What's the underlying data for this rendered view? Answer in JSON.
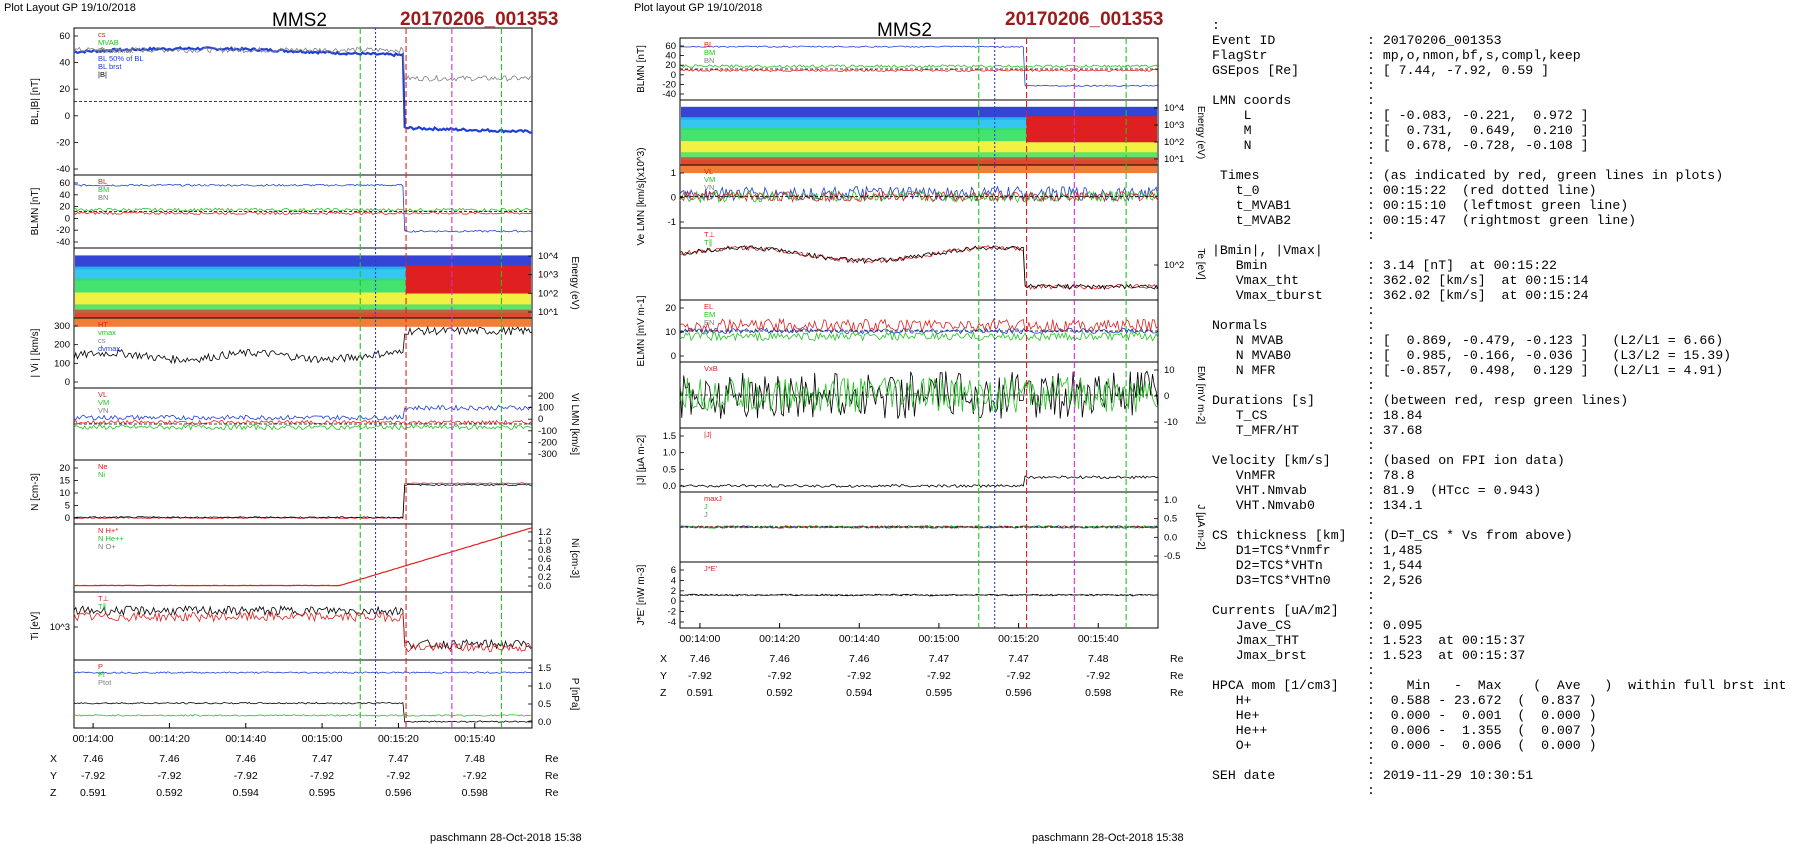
{
  "header": {
    "left_label": "Plot Layout GP 19/10/2018",
    "mid_label": "Plot layout GP 19/10/2018",
    "spacecraft": "MMS2",
    "event": "20170206_001353"
  },
  "footer": {
    "left": "paschmann 28-Oct-2018 15:38",
    "mid": "paschmann 28-Oct-2018 15:38"
  },
  "colors": {
    "blue": "#1f3fd6",
    "red": "#e02020",
    "green": "#22c322",
    "black": "#000000",
    "gray": "#808080",
    "event_red": "#9b1b1b",
    "magenta": "#d62ad6",
    "cyan": "#21b8d8"
  },
  "chart_data": [
    {
      "id": "left_stack",
      "type": "line",
      "time_ticks": [
        "00:14:00",
        "00:14:20",
        "00:14:40",
        "00:15:00",
        "00:15:20",
        "00:15:40"
      ],
      "ephemeris": {
        "rows": [
          {
            "label": "X",
            "values": [
              "7.46",
              "7.46",
              "7.46",
              "7.47",
              "7.47",
              "7.48"
            ],
            "unit": "Re"
          },
          {
            "label": "Y",
            "values": [
              "-7.92",
              "-7.92",
              "-7.92",
              "-7.92",
              "-7.92",
              "-7.92"
            ],
            "unit": "Re"
          },
          {
            "label": "Z",
            "values": [
              "0.591",
              "0.592",
              "0.594",
              "0.595",
              "0.596",
              "0.598"
            ],
            "unit": "Re"
          }
        ]
      },
      "panels": [
        {
          "ylabel": "B_L,|B| [nT]",
          "ylabel_text": "BL,|B| [nT]",
          "ticks": [
            "60",
            "40",
            "20",
            "0",
            "-20",
            "-40"
          ],
          "legend": [
            "cs",
            "MVAB",
            "BLminmax",
            "BL 50% of BL",
            "BL brst",
            "|B|"
          ]
        },
        {
          "ylabel": "B_LMN [nT]",
          "ylabel_text": "BLMN [nT]",
          "ticks": [
            "60",
            "40",
            "20",
            "0",
            "-20",
            "-40"
          ],
          "legend": [
            "BL",
            "BM",
            "BN"
          ]
        },
        {
          "ylabel": "Energy (eV)",
          "ylabel_text": "Energy (eV)",
          "ticks": [
            "10^4",
            "10^3",
            "10^2",
            "10^1"
          ],
          "legend": []
        },
        {
          "ylabel": "| Vi | [km/s]",
          "ylabel_text": "| Vi | [km/s]",
          "ticks": [
            "300",
            "200",
            "100",
            "0"
          ],
          "legend": [
            "HT",
            "vmax",
            "cs",
            "dvmax"
          ]
        },
        {
          "ylabel": "Vi LMN [km/s]",
          "ylabel_text": "Vi LMN [km/s]",
          "ticks": [
            "200",
            "100",
            "0",
            "-100",
            "-200",
            "-300"
          ],
          "legend": [
            "VL",
            "VM",
            "VN"
          ]
        },
        {
          "ylabel": "N [cm-3]",
          "ylabel_text": "N [cm-3]",
          "ticks": [
            "20",
            "15",
            "10",
            "5",
            "0"
          ],
          "legend": [
            "Ne",
            "Ni"
          ]
        },
        {
          "ylabel": "Ni [cm-3]",
          "ylabel_text": "Ni [cm-3]",
          "ticks": [
            "1.2",
            "1.0",
            "0.8",
            "0.6",
            "0.4",
            "0.2",
            "0.0"
          ],
          "legend": [
            "N H+*",
            "N He++",
            "N O+"
          ]
        },
        {
          "ylabel": "Ti [eV]",
          "ylabel_text": "Ti [eV]",
          "ticks": [
            "10^3"
          ],
          "legend": [
            "T⊥",
            "T∥"
          ]
        },
        {
          "ylabel": "P [nPa]",
          "ylabel_text": "P [nPa]",
          "ticks": [
            "1.5",
            "1.0",
            "0.5",
            "0.0"
          ],
          "legend": [
            "P",
            "Pi",
            "Ptot"
          ]
        }
      ],
      "vlines": {
        "green": [
          "00:15:10",
          "00:15:47"
        ],
        "red": [
          "00:15:22"
        ],
        "blue": [
          "00:15:14"
        ],
        "magenta": [
          "00:15:34"
        ]
      }
    },
    {
      "id": "mid_stack",
      "type": "line",
      "time_ticks": [
        "00:14:00",
        "00:14:20",
        "00:14:40",
        "00:15:00",
        "00:15:20",
        "00:15:40"
      ],
      "ephemeris": {
        "rows": [
          {
            "label": "X",
            "values": [
              "7.46",
              "7.46",
              "7.46",
              "7.47",
              "7.47",
              "7.48"
            ],
            "unit": "Re"
          },
          {
            "label": "Y",
            "values": [
              "-7.92",
              "-7.92",
              "-7.92",
              "-7.92",
              "-7.92",
              "-7.92"
            ],
            "unit": "Re"
          },
          {
            "label": "Z",
            "values": [
              "0.591",
              "0.592",
              "0.594",
              "0.595",
              "0.596",
              "0.598"
            ],
            "unit": "Re"
          }
        ]
      },
      "panels": [
        {
          "ylabel": "B LMN [nT]",
          "ylabel_text": "BLMN [nT]",
          "ticks": [
            "60",
            "40",
            "20",
            "0",
            "-20",
            "-40"
          ],
          "legend": [
            "BL",
            "BM",
            "BN"
          ]
        },
        {
          "ylabel": "Energy (eV)",
          "ylabel_text": "Energy (eV)",
          "ticks": [
            "10^4",
            "10^3",
            "10^2",
            "10^1"
          ],
          "legend": []
        },
        {
          "ylabel": "Ve LMN [km/s]",
          "ylabel_text": "Ve LMN [km/s](x10^3)",
          "ticks": [
            "1",
            "0",
            "-1"
          ],
          "legend": [
            "VL",
            "VM",
            "VN"
          ]
        },
        {
          "ylabel": "Te [eV]",
          "ylabel_text": "Te [eV]",
          "ticks": [
            "10^2"
          ],
          "legend": [
            "T⊥",
            "T∥"
          ]
        },
        {
          "ylabel": "ELMN [mV m-1]",
          "ylabel_text": "ELMN [mV m-1]",
          "ticks": [
            "20",
            "10",
            "0"
          ],
          "legend": [
            "EL",
            "EM",
            "EN"
          ]
        },
        {
          "ylabel": "EM [mV m-2]",
          "ylabel_text": "EM [mV m-2]",
          "ticks": [
            "10",
            "0",
            "-10"
          ],
          "legend": [
            "VxB"
          ]
        },
        {
          "ylabel": "|J| [µA m-2]",
          "ylabel_text": "|J| [µA m-2]",
          "ticks": [
            "1.5",
            "1.0",
            "0.5",
            "0.0"
          ],
          "legend": [
            "|J|"
          ]
        },
        {
          "ylabel": "J [µA m-2]",
          "ylabel_text": "J [µA m-2]",
          "ticks": [
            "1.0",
            "0.5",
            "0.0",
            "-0.5"
          ],
          "legend": [
            "maxJ",
            "J",
            "J"
          ]
        },
        {
          "ylabel": "J*E' [nW m-3]",
          "ylabel_text": "J*E' [nW m-3]",
          "ticks": [
            "6",
            "4",
            "2",
            "0",
            "-2",
            "-4"
          ],
          "legend": [
            "J*E'"
          ]
        }
      ],
      "vlines": {
        "green": [
          "00:15:10",
          "00:15:47"
        ],
        "red": [
          "00:15:22"
        ],
        "blue": [
          "00:15:14"
        ],
        "magenta": [
          "00:15:34"
        ]
      }
    }
  ],
  "info": [
    {
      "k": ":",
      "v": ""
    },
    {
      "k": "Event ID",
      "v": ": 20170206_001353"
    },
    {
      "k": "FlagStr",
      "v": ": mp,o,nmon,bf,s,compl,keep"
    },
    {
      "k": "GSEpos [Re]",
      "v": ": [ 7.44, -7.92, 0.59 ]"
    },
    {
      "k": "",
      "v": ":"
    },
    {
      "k": "LMN coords",
      "v": ":"
    },
    {
      "k": "    L",
      "v": ": [ -0.083, -0.221,  0.972 ]"
    },
    {
      "k": "    M",
      "v": ": [  0.731,  0.649,  0.210 ]"
    },
    {
      "k": "    N",
      "v": ": [  0.678, -0.728, -0.108 ]"
    },
    {
      "k": "",
      "v": ":"
    },
    {
      "k": " Times",
      "v": ": (as indicated by red, green lines in plots)"
    },
    {
      "k": "   t_0",
      "v": ": 00:15:22  (red dotted line)"
    },
    {
      "k": "   t_MVAB1",
      "v": ": 00:15:10  (leftmost green line)"
    },
    {
      "k": "   t_MVAB2",
      "v": ": 00:15:47  (rightmost green line)"
    },
    {
      "k": "",
      "v": ":"
    },
    {
      "k": "|Bmin|, |Vmax|",
      "v": ""
    },
    {
      "k": "   Bmin",
      "v": ": 3.14 [nT]  at 00:15:22"
    },
    {
      "k": "   Vmax_tht",
      "v": ": 362.02 [km/s]  at 00:15:14"
    },
    {
      "k": "   Vmax_tburst",
      "v": ": 362.02 [km/s]  at 00:15:24"
    },
    {
      "k": "",
      "v": ":"
    },
    {
      "k": "Normals",
      "v": ":"
    },
    {
      "k": "   N MVAB",
      "v": ": [  0.869, -0.479, -0.123 ]   (L2/L1 = 6.66)"
    },
    {
      "k": "   N MVAB0",
      "v": ": [  0.985, -0.166, -0.036 ]   (L3/L2 = 15.39)"
    },
    {
      "k": "   N MFR",
      "v": ": [ -0.857,  0.498,  0.129 ]   (L2/L1 = 4.91)"
    },
    {
      "k": "",
      "v": ":"
    },
    {
      "k": "Durations [s]",
      "v": ": (between red, resp green lines)"
    },
    {
      "k": "   T_CS",
      "v": ": 18.84"
    },
    {
      "k": "   T_MFR/HT",
      "v": ": 37.68"
    },
    {
      "k": "",
      "v": ":"
    },
    {
      "k": "Velocity [km/s]",
      "v": ": (based on FPI ion data)"
    },
    {
      "k": "   VnMFR",
      "v": ": 78.8"
    },
    {
      "k": "   VHT.Nmvab",
      "v": ": 81.9  (HTcc = 0.943)"
    },
    {
      "k": "   VHT.Nmvab0",
      "v": ": 134.1"
    },
    {
      "k": "",
      "v": ":"
    },
    {
      "k": "CS thickness [km]",
      "v": ": (D=T_CS * Vs from above)"
    },
    {
      "k": "   D1=TCS*Vnmfr",
      "v": ": 1,485"
    },
    {
      "k": "   D2=TCS*VHTn",
      "v": ": 1,544"
    },
    {
      "k": "   D3=TCS*VHTn0",
      "v": ": 2,526"
    },
    {
      "k": "",
      "v": ":"
    },
    {
      "k": "Currents [uA/m2]",
      "v": ":"
    },
    {
      "k": "   Jave_CS",
      "v": ": 0.095"
    },
    {
      "k": "   Jmax_THT",
      "v": ": 1.523  at 00:15:37"
    },
    {
      "k": "   Jmax_brst",
      "v": ": 1.523  at 00:15:37"
    },
    {
      "k": "",
      "v": ":"
    },
    {
      "k": "HPCA mom [1/cm3]",
      "v": ":    Min   -  Max    (  Ave   )  within full brst int"
    },
    {
      "k": "   H+",
      "v": ":  0.588 - 23.672  (  0.837 )"
    },
    {
      "k": "   He+",
      "v": ":  0.000 -  0.001  (  0.000 )"
    },
    {
      "k": "   He++",
      "v": ":  0.006 -  1.355  (  0.007 )"
    },
    {
      "k": "   O+",
      "v": ":  0.000 -  0.006  (  0.000 )"
    },
    {
      "k": "",
      "v": ":"
    },
    {
      "k": "SEH date",
      "v": ": 2019-11-29 10:30:51"
    },
    {
      "k": "",
      "v": ":"
    }
  ]
}
